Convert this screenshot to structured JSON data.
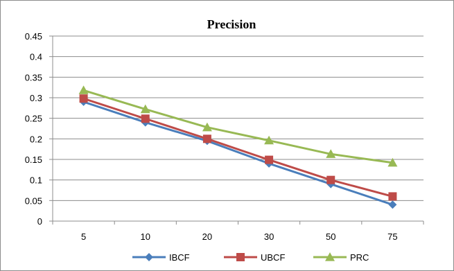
{
  "chart_data": {
    "type": "line",
    "title": "Precision",
    "xlabel": "",
    "ylabel": "",
    "categories": [
      "5",
      "10",
      "20",
      "30",
      "50",
      "75"
    ],
    "ylim": [
      0,
      0.45
    ],
    "yticks": [
      "0",
      "0.05",
      "0.1",
      "0.15",
      "0.2",
      "0.25",
      "0.3",
      "0.35",
      "0.4",
      "0.45"
    ],
    "grid": true,
    "legend_position": "bottom",
    "series": [
      {
        "name": "IBCF",
        "values": [
          0.29,
          0.24,
          0.195,
          0.14,
          0.09,
          0.04
        ],
        "color": "#4a7ebb",
        "marker": "diamond"
      },
      {
        "name": "UBCF",
        "values": [
          0.298,
          0.249,
          0.2,
          0.149,
          0.1,
          0.06
        ],
        "color": "#be4b48",
        "marker": "square"
      },
      {
        "name": "PRC",
        "values": [
          0.318,
          0.272,
          0.228,
          0.196,
          0.163,
          0.142
        ],
        "color": "#98b954",
        "marker": "triangle"
      }
    ]
  }
}
